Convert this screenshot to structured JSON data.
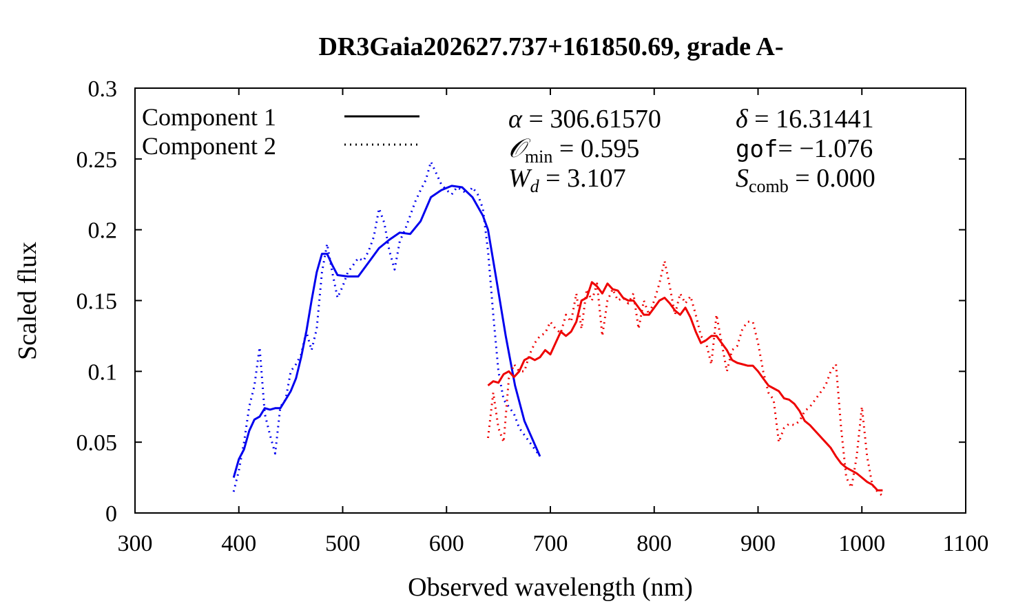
{
  "chart_data": {
    "type": "line",
    "title": "DR3Gaia202627.737+161850.69, grade A-",
    "xlabel": "Observed wavelength (nm)",
    "ylabel": "Scaled flux",
    "xlim": [
      300,
      1100
    ],
    "ylim": [
      0,
      0.3
    ],
    "xticks": [
      300,
      400,
      500,
      600,
      700,
      800,
      900,
      1000,
      1100
    ],
    "yticks": [
      0,
      0.05,
      0.1,
      0.15,
      0.2,
      0.25,
      0.3
    ],
    "xtick_labels": [
      "300",
      "400",
      "500",
      "600",
      "700",
      "800",
      "900",
      "1000",
      "1100"
    ],
    "ytick_labels": [
      "0",
      "0.05",
      "0.1",
      "0.15",
      "0.2",
      "0.25",
      "0.3"
    ],
    "legend": {
      "position": "top-left",
      "entries": [
        {
          "label": "Component 1",
          "style": "solid"
        },
        {
          "label": "Component 2",
          "style": "dotted"
        }
      ]
    },
    "annotations": {
      "alpha": {
        "symbol": "α",
        "value": "306.61570"
      },
      "delta": {
        "symbol": "δ",
        "value": "16.31441"
      },
      "omin": {
        "symbol": "𝒪",
        "sub": "min",
        "value": "0.595"
      },
      "gof": {
        "symbol": "gof",
        "value": "−1.076"
      },
      "wd": {
        "symbol": "W",
        "sub": "d",
        "value": "3.107"
      },
      "scomb": {
        "symbol": "S",
        "sub": "comb",
        "value": "0.000"
      }
    },
    "series": [
      {
        "name": "blue component 1",
        "color": "#0000ee",
        "style": "solid",
        "x": [
          395,
          400,
          405,
          410,
          415,
          420,
          425,
          430,
          435,
          440,
          445,
          450,
          455,
          460,
          465,
          470,
          475,
          480,
          485,
          490,
          495,
          505,
          515,
          525,
          535,
          545,
          555,
          565,
          575,
          585,
          595,
          605,
          615,
          625,
          635,
          640,
          648,
          657,
          666,
          675,
          690
        ],
        "y": [
          0.025,
          0.038,
          0.045,
          0.058,
          0.066,
          0.068,
          0.074,
          0.073,
          0.074,
          0.074,
          0.08,
          0.086,
          0.095,
          0.11,
          0.128,
          0.15,
          0.17,
          0.183,
          0.183,
          0.175,
          0.168,
          0.167,
          0.167,
          0.177,
          0.187,
          0.193,
          0.198,
          0.197,
          0.206,
          0.223,
          0.228,
          0.231,
          0.23,
          0.223,
          0.21,
          0.2,
          0.165,
          0.125,
          0.09,
          0.065,
          0.04
        ]
      },
      {
        "name": "blue component 2",
        "color": "#0000ee",
        "style": "dotted",
        "x": [
          395,
          400,
          405,
          410,
          415,
          420,
          425,
          430,
          435,
          440,
          445,
          450,
          455,
          460,
          465,
          470,
          475,
          480,
          485,
          490,
          495,
          500,
          505,
          510,
          515,
          520,
          525,
          530,
          535,
          540,
          545,
          550,
          555,
          560,
          565,
          570,
          575,
          580,
          585,
          590,
          595,
          600,
          605,
          610,
          615,
          620,
          625,
          630,
          635,
          640,
          645,
          650,
          655,
          660,
          665,
          670,
          680,
          690
        ],
        "y": [
          0.015,
          0.03,
          0.05,
          0.075,
          0.09,
          0.117,
          0.07,
          0.055,
          0.042,
          0.075,
          0.08,
          0.1,
          0.105,
          0.112,
          0.128,
          0.115,
          0.13,
          0.17,
          0.19,
          0.17,
          0.152,
          0.16,
          0.17,
          0.175,
          0.18,
          0.178,
          0.185,
          0.195,
          0.215,
          0.205,
          0.185,
          0.172,
          0.192,
          0.2,
          0.21,
          0.22,
          0.228,
          0.235,
          0.248,
          0.24,
          0.232,
          0.228,
          0.225,
          0.23,
          0.228,
          0.225,
          0.23,
          0.225,
          0.215,
          0.185,
          0.14,
          0.1,
          0.08,
          0.075,
          0.07,
          0.06,
          0.05,
          0.04
        ]
      },
      {
        "name": "red component 1",
        "color": "#ee0000",
        "style": "solid",
        "x": [
          640,
          645,
          650,
          655,
          660,
          665,
          670,
          675,
          680,
          685,
          690,
          695,
          700,
          705,
          710,
          715,
          720,
          725,
          730,
          735,
          740,
          745,
          750,
          755,
          760,
          765,
          770,
          775,
          780,
          785,
          790,
          795,
          800,
          805,
          810,
          815,
          820,
          825,
          830,
          835,
          840,
          845,
          850,
          855,
          860,
          865,
          870,
          875,
          880,
          885,
          890,
          895,
          900,
          905,
          910,
          915,
          920,
          925,
          930,
          935,
          940,
          945,
          950,
          955,
          960,
          965,
          970,
          975,
          980,
          985,
          990,
          995,
          1000,
          1005,
          1010,
          1015,
          1020
        ],
        "y": [
          0.09,
          0.093,
          0.092,
          0.098,
          0.1,
          0.096,
          0.1,
          0.108,
          0.11,
          0.108,
          0.11,
          0.115,
          0.112,
          0.12,
          0.128,
          0.125,
          0.128,
          0.135,
          0.15,
          0.152,
          0.163,
          0.16,
          0.155,
          0.162,
          0.158,
          0.157,
          0.152,
          0.15,
          0.15,
          0.145,
          0.14,
          0.14,
          0.145,
          0.15,
          0.152,
          0.148,
          0.143,
          0.14,
          0.145,
          0.138,
          0.128,
          0.12,
          0.122,
          0.125,
          0.125,
          0.12,
          0.115,
          0.108,
          0.106,
          0.105,
          0.104,
          0.104,
          0.1,
          0.095,
          0.09,
          0.088,
          0.086,
          0.081,
          0.08,
          0.077,
          0.072,
          0.065,
          0.062,
          0.058,
          0.054,
          0.05,
          0.046,
          0.04,
          0.035,
          0.032,
          0.03,
          0.028,
          0.025,
          0.022,
          0.02,
          0.016,
          0.016
        ]
      },
      {
        "name": "red component 2",
        "color": "#ee0000",
        "style": "dotted",
        "x": [
          640,
          645,
          650,
          655,
          660,
          665,
          670,
          675,
          680,
          685,
          690,
          695,
          700,
          705,
          710,
          715,
          720,
          725,
          730,
          735,
          740,
          745,
          750,
          755,
          760,
          765,
          770,
          775,
          780,
          785,
          790,
          795,
          800,
          805,
          810,
          815,
          820,
          825,
          830,
          835,
          840,
          845,
          850,
          855,
          860,
          865,
          870,
          875,
          880,
          885,
          890,
          895,
          900,
          905,
          910,
          915,
          920,
          925,
          930,
          935,
          940,
          945,
          950,
          955,
          960,
          965,
          970,
          975,
          980,
          985,
          990,
          995,
          1000,
          1005,
          1010,
          1015,
          1020
        ],
        "y": [
          0.053,
          0.085,
          0.06,
          0.05,
          0.095,
          0.105,
          0.1,
          0.1,
          0.112,
          0.12,
          0.125,
          0.127,
          0.135,
          0.13,
          0.127,
          0.14,
          0.135,
          0.155,
          0.13,
          0.158,
          0.15,
          0.162,
          0.125,
          0.15,
          0.158,
          0.15,
          0.152,
          0.148,
          0.155,
          0.13,
          0.15,
          0.14,
          0.15,
          0.162,
          0.178,
          0.16,
          0.14,
          0.155,
          0.148,
          0.153,
          0.14,
          0.125,
          0.12,
          0.105,
          0.14,
          0.12,
          0.1,
          0.115,
          0.118,
          0.13,
          0.135,
          0.135,
          0.12,
          0.1,
          0.085,
          0.08,
          0.05,
          0.06,
          0.063,
          0.062,
          0.065,
          0.072,
          0.075,
          0.08,
          0.085,
          0.09,
          0.1,
          0.105,
          0.06,
          0.025,
          0.018,
          0.04,
          0.075,
          0.04,
          0.02,
          0.015,
          0.012
        ]
      }
    ]
  }
}
